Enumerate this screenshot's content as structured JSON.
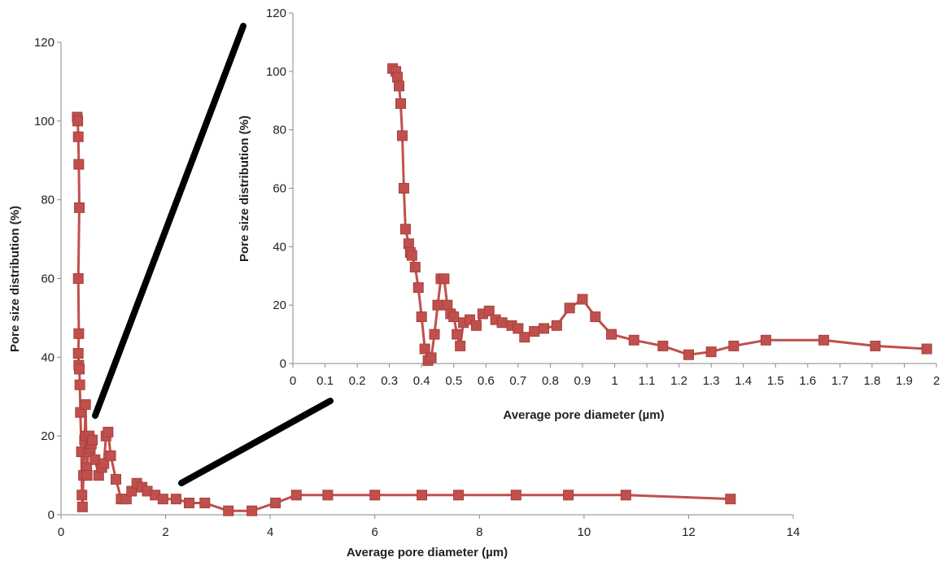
{
  "chart_data": [
    {
      "type": "line",
      "marker": "square",
      "color": "#C0504D",
      "xlabel": "Average pore diameter (µm)",
      "ylabel": "Pore size distribution  (%)",
      "xlim": [
        0,
        14
      ],
      "ylim": [
        0,
        120
      ],
      "xticks": [
        "0",
        "2",
        "4",
        "6",
        "8",
        "10",
        "12",
        "14"
      ],
      "yticks": [
        "0",
        "20",
        "40",
        "60",
        "80",
        "100",
        "120"
      ],
      "grid": false,
      "series": [
        {
          "x": [
            0.31,
            0.32,
            0.33,
            0.34,
            0.35,
            0.33,
            0.34,
            0.33,
            0.34,
            0.35,
            0.36,
            0.37,
            0.39,
            0.4,
            0.41,
            0.43,
            0.45,
            0.47,
            0.48,
            0.49,
            0.5,
            0.52,
            0.54,
            0.56,
            0.58,
            0.6,
            0.65,
            0.72,
            0.78,
            0.82,
            0.86,
            0.9,
            0.95,
            1.05,
            1.15,
            1.25,
            1.35,
            1.45,
            1.55,
            1.65,
            1.8,
            1.95,
            2.2,
            2.45,
            2.75,
            3.2,
            3.65,
            4.1,
            4.5,
            5.1,
            6.0,
            6.9,
            7.6,
            8.7,
            9.7,
            10.8,
            12.8
          ],
          "y": [
            101,
            100,
            96,
            89,
            78,
            60,
            46,
            41,
            38,
            37,
            33,
            26,
            16,
            5,
            2,
            10,
            19,
            28,
            20,
            12,
            10,
            16,
            20,
            17,
            18,
            19,
            14,
            10,
            12,
            13,
            20,
            21,
            15,
            9,
            4,
            4,
            6,
            8,
            7,
            6,
            5,
            4,
            4,
            3,
            3,
            1,
            1,
            3,
            5,
            5,
            5,
            5,
            5,
            5,
            5,
            5,
            4
          ]
        }
      ]
    },
    {
      "type": "line",
      "marker": "square",
      "color": "#C0504D",
      "xlabel": "Average pore diameter (µm)",
      "ylabel": "Pore size distribution  (%)",
      "xlim": [
        0,
        2
      ],
      "ylim": [
        0,
        120
      ],
      "xticks": [
        "0",
        "0.1",
        "0.2",
        "0.3",
        "0.4",
        "0.5",
        "0.6",
        "0.7",
        "0.8",
        "0.9",
        "1",
        "1.1",
        "1.2",
        "1.3",
        "1.4",
        "1.5",
        "1.6",
        "1.7",
        "1.8",
        "1.9",
        "2"
      ],
      "yticks": [
        "0",
        "20",
        "40",
        "60",
        "80",
        "100",
        "120"
      ],
      "grid": false,
      "series": [
        {
          "x": [
            0.31,
            0.32,
            0.325,
            0.33,
            0.335,
            0.34,
            0.345,
            0.35,
            0.36,
            0.365,
            0.37,
            0.38,
            0.39,
            0.4,
            0.41,
            0.42,
            0.43,
            0.44,
            0.45,
            0.46,
            0.47,
            0.48,
            0.49,
            0.5,
            0.51,
            0.52,
            0.53,
            0.55,
            0.57,
            0.59,
            0.61,
            0.63,
            0.65,
            0.68,
            0.7,
            0.72,
            0.75,
            0.78,
            0.82,
            0.86,
            0.9,
            0.94,
            0.99,
            1.06,
            1.15,
            1.23,
            1.3,
            1.37,
            1.47,
            1.65,
            1.81,
            1.97
          ],
          "y": [
            101,
            100,
            98,
            95,
            89,
            78,
            60,
            46,
            41,
            38,
            37,
            33,
            26,
            16,
            5,
            1,
            2,
            10,
            20,
            29,
            29,
            20,
            17,
            16,
            10,
            6,
            14,
            15,
            13,
            17,
            18,
            15,
            14,
            13,
            12,
            9,
            11,
            12,
            13,
            19,
            22,
            16,
            10,
            8,
            6,
            3,
            4,
            6,
            8,
            8,
            6,
            5
          ]
        }
      ]
    }
  ]
}
